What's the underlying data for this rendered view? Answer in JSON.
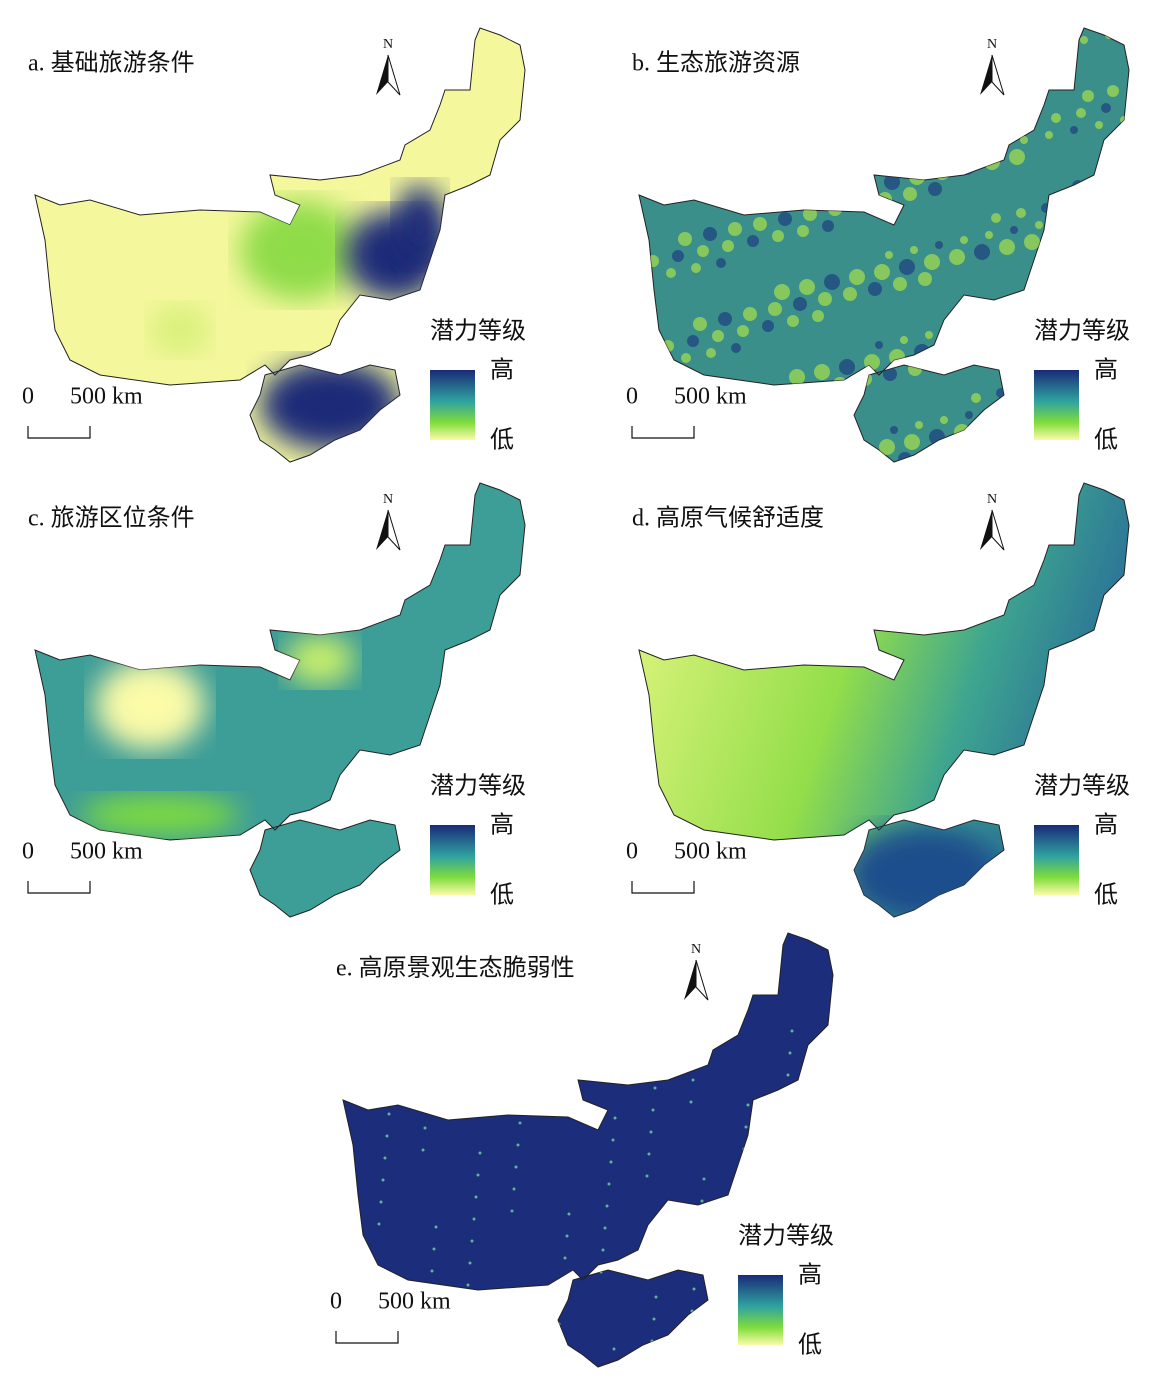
{
  "panels": [
    {
      "title": "a. 基础旅游条件",
      "north": "N",
      "legend": {
        "title": "潜力等级",
        "high": "高",
        "low": "低"
      },
      "scale": {
        "zero": "0",
        "distance": "500 km"
      }
    },
    {
      "title": "b. 生态旅游资源",
      "north": "N",
      "legend": {
        "title": "潜力等级",
        "high": "高",
        "low": "低"
      },
      "scale": {
        "zero": "0",
        "distance": "500 km"
      }
    },
    {
      "title": "c. 旅游区位条件",
      "north": "N",
      "legend": {
        "title": "潜力等级",
        "high": "高",
        "low": "低"
      },
      "scale": {
        "zero": "0",
        "distance": "500 km"
      }
    },
    {
      "title": "d. 高原气候舒适度",
      "north": "N",
      "legend": {
        "title": "潜力等级",
        "high": "高",
        "low": "低"
      },
      "scale": {
        "zero": "0",
        "distance": "500 km"
      }
    },
    {
      "title": "e. 高原景观生态脆弱性",
      "north": "N",
      "legend": {
        "title": "潜力等级",
        "high": "高",
        "low": "低"
      },
      "scale": {
        "zero": "0",
        "distance": "500 km"
      }
    }
  ]
}
